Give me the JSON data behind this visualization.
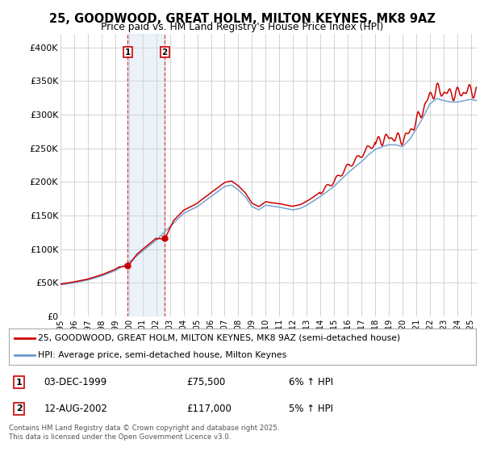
{
  "title": "25, GOODWOOD, GREAT HOLM, MILTON KEYNES, MK8 9AZ",
  "subtitle": "Price paid vs. HM Land Registry's House Price Index (HPI)",
  "ylabel_ticks": [
    "£0",
    "£50K",
    "£100K",
    "£150K",
    "£200K",
    "£250K",
    "£300K",
    "£350K",
    "£400K"
  ],
  "ytick_values": [
    0,
    50000,
    100000,
    150000,
    200000,
    250000,
    300000,
    350000,
    400000
  ],
  "ylim": [
    0,
    420000
  ],
  "xlim_start": 1995.0,
  "xlim_end": 2025.5,
  "xtick_years": [
    1995,
    1996,
    1997,
    1998,
    1999,
    2000,
    2001,
    2002,
    2003,
    2004,
    2005,
    2006,
    2007,
    2008,
    2009,
    2010,
    2011,
    2012,
    2013,
    2014,
    2015,
    2016,
    2017,
    2018,
    2019,
    2020,
    2021,
    2022,
    2023,
    2024,
    2025
  ],
  "sale1_x": 1999.92,
  "sale1_y": 75500,
  "sale2_x": 2002.62,
  "sale2_y": 117000,
  "line1_color": "#cc0000",
  "line2_color": "#6699cc",
  "shade_color": "#c8dff0",
  "marker_color": "#cc0000",
  "vline_color": "#cc0000",
  "background_color": "#ffffff",
  "grid_color": "#cccccc",
  "legend1_label": "25, GOODWOOD, GREAT HOLM, MILTON KEYNES, MK8 9AZ (semi-detached house)",
  "legend2_label": "HPI: Average price, semi-detached house, Milton Keynes",
  "sale1_date": "03-DEC-1999",
  "sale1_price": "£75,500",
  "sale1_hpi": "6% ↑ HPI",
  "sale2_date": "12-AUG-2002",
  "sale2_price": "£117,000",
  "sale2_hpi": "5% ↑ HPI",
  "footnote": "Contains HM Land Registry data © Crown copyright and database right 2025.\nThis data is licensed under the Open Government Licence v3.0."
}
